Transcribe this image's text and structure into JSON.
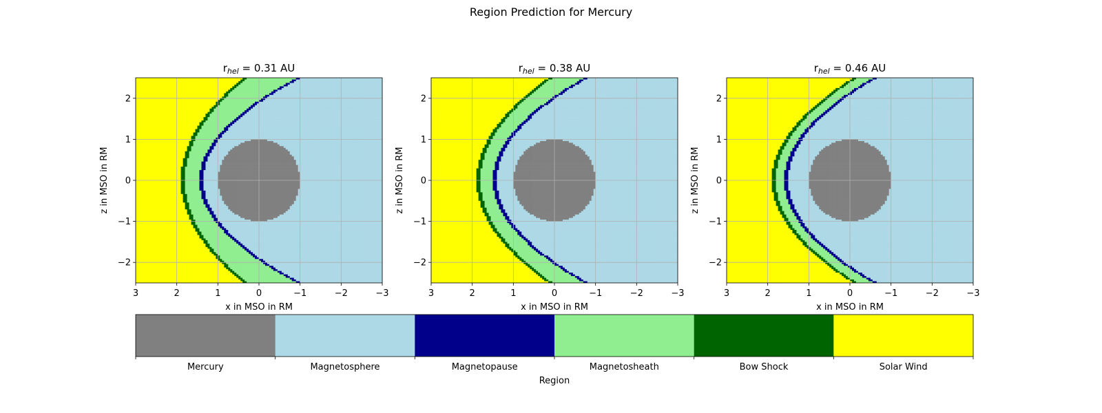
{
  "chart_data": {
    "type": "heatmap",
    "title": "Region Prediction for Mercury",
    "colorbar": {
      "label": "Region",
      "categories": [
        {
          "name": "Mercury",
          "color": "#808080"
        },
        {
          "name": "Magnetosphere",
          "color": "#add8e6"
        },
        {
          "name": "Magnetopause",
          "color": "#00008b"
        },
        {
          "name": "Magnetosheath",
          "color": "#90ee90"
        },
        {
          "name": "Bow Shock",
          "color": "#006400"
        },
        {
          "name": "Solar Wind",
          "color": "#ffff00"
        }
      ]
    },
    "panels": [
      {
        "title_prefix": "r",
        "title_sub": "hel",
        "title_suffix": " = 0.31 AU",
        "xlabel": "x in MSO in RM",
        "ylabel": "z in MSO in RM",
        "xlim": [
          3,
          -3
        ],
        "ylim": [
          -2.5,
          2.5
        ],
        "xticks": [
          3,
          2,
          1,
          0,
          -1,
          -2,
          -3
        ],
        "yticks": [
          2,
          1,
          0,
          -1,
          -2
        ],
        "planet_radius": 1.0,
        "magnetopause": {
          "nose_x": 1.45,
          "flank_z_at_x0": 1.95,
          "thickness": 0.1
        },
        "bow_shock": {
          "nose_x": 1.9,
          "flank_z_at_x0": 2.8,
          "thickness": 0.1
        }
      },
      {
        "title_prefix": "r",
        "title_sub": "hel",
        "title_suffix": " = 0.38 AU",
        "xlabel": "x in MSO in RM",
        "ylabel": "z in MSO in RM",
        "xlim": [
          3,
          -3
        ],
        "ylim": [
          -2.5,
          2.5
        ],
        "xticks": [
          3,
          2,
          1,
          0,
          -1,
          -2,
          -3
        ],
        "yticks": [
          2,
          1,
          0,
          -1,
          -2
        ],
        "planet_radius": 1.0,
        "magnetopause": {
          "nose_x": 1.5,
          "flank_z_at_x0": 2.05,
          "thickness": 0.1
        },
        "bow_shock": {
          "nose_x": 1.9,
          "flank_z_at_x0": 2.6,
          "thickness": 0.1
        }
      },
      {
        "title_prefix": "r",
        "title_sub": "hel",
        "title_suffix": " = 0.46 AU",
        "xlabel": "x in MSO in RM",
        "ylabel": "z in MSO in RM",
        "xlim": [
          3,
          -3
        ],
        "ylim": [
          -2.5,
          2.5
        ],
        "xticks": [
          3,
          2,
          1,
          0,
          -1,
          -2,
          -3
        ],
        "yticks": [
          2,
          1,
          0,
          -1,
          -2
        ],
        "planet_radius": 1.0,
        "magnetopause": {
          "nose_x": 1.6,
          "flank_z_at_x0": 2.15,
          "thickness": 0.1
        },
        "bow_shock": {
          "nose_x": 1.9,
          "flank_z_at_x0": 2.45,
          "thickness": 0.1
        }
      }
    ]
  }
}
